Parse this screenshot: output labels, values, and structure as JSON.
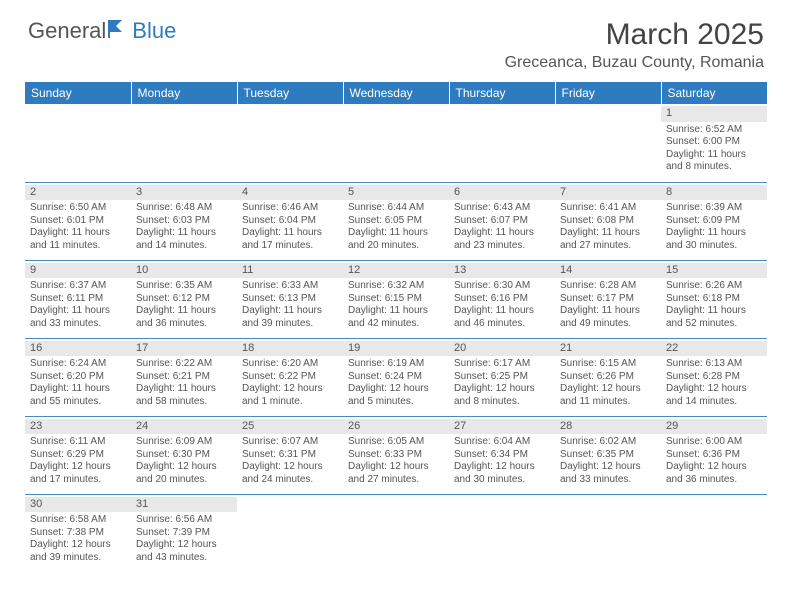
{
  "logo": {
    "text1": "General",
    "text2": "Blue"
  },
  "title": "March 2025",
  "location": "Greceanca, Buzau County, Romania",
  "columns": [
    "Sunday",
    "Monday",
    "Tuesday",
    "Wednesday",
    "Thursday",
    "Friday",
    "Saturday"
  ],
  "colors": {
    "header_bg": "#2f7bbf",
    "header_text": "#ffffff",
    "cell_border": "#4a88c0",
    "daynum_bg": "#e8e8e8",
    "text": "#555555"
  },
  "weeks": [
    [
      null,
      null,
      null,
      null,
      null,
      null,
      {
        "n": "1",
        "sr": "Sunrise: 6:52 AM",
        "ss": "Sunset: 6:00 PM",
        "d1": "Daylight: 11 hours",
        "d2": "and 8 minutes."
      }
    ],
    [
      {
        "n": "2",
        "sr": "Sunrise: 6:50 AM",
        "ss": "Sunset: 6:01 PM",
        "d1": "Daylight: 11 hours",
        "d2": "and 11 minutes."
      },
      {
        "n": "3",
        "sr": "Sunrise: 6:48 AM",
        "ss": "Sunset: 6:03 PM",
        "d1": "Daylight: 11 hours",
        "d2": "and 14 minutes."
      },
      {
        "n": "4",
        "sr": "Sunrise: 6:46 AM",
        "ss": "Sunset: 6:04 PM",
        "d1": "Daylight: 11 hours",
        "d2": "and 17 minutes."
      },
      {
        "n": "5",
        "sr": "Sunrise: 6:44 AM",
        "ss": "Sunset: 6:05 PM",
        "d1": "Daylight: 11 hours",
        "d2": "and 20 minutes."
      },
      {
        "n": "6",
        "sr": "Sunrise: 6:43 AM",
        "ss": "Sunset: 6:07 PM",
        "d1": "Daylight: 11 hours",
        "d2": "and 23 minutes."
      },
      {
        "n": "7",
        "sr": "Sunrise: 6:41 AM",
        "ss": "Sunset: 6:08 PM",
        "d1": "Daylight: 11 hours",
        "d2": "and 27 minutes."
      },
      {
        "n": "8",
        "sr": "Sunrise: 6:39 AM",
        "ss": "Sunset: 6:09 PM",
        "d1": "Daylight: 11 hours",
        "d2": "and 30 minutes."
      }
    ],
    [
      {
        "n": "9",
        "sr": "Sunrise: 6:37 AM",
        "ss": "Sunset: 6:11 PM",
        "d1": "Daylight: 11 hours",
        "d2": "and 33 minutes."
      },
      {
        "n": "10",
        "sr": "Sunrise: 6:35 AM",
        "ss": "Sunset: 6:12 PM",
        "d1": "Daylight: 11 hours",
        "d2": "and 36 minutes."
      },
      {
        "n": "11",
        "sr": "Sunrise: 6:33 AM",
        "ss": "Sunset: 6:13 PM",
        "d1": "Daylight: 11 hours",
        "d2": "and 39 minutes."
      },
      {
        "n": "12",
        "sr": "Sunrise: 6:32 AM",
        "ss": "Sunset: 6:15 PM",
        "d1": "Daylight: 11 hours",
        "d2": "and 42 minutes."
      },
      {
        "n": "13",
        "sr": "Sunrise: 6:30 AM",
        "ss": "Sunset: 6:16 PM",
        "d1": "Daylight: 11 hours",
        "d2": "and 46 minutes."
      },
      {
        "n": "14",
        "sr": "Sunrise: 6:28 AM",
        "ss": "Sunset: 6:17 PM",
        "d1": "Daylight: 11 hours",
        "d2": "and 49 minutes."
      },
      {
        "n": "15",
        "sr": "Sunrise: 6:26 AM",
        "ss": "Sunset: 6:18 PM",
        "d1": "Daylight: 11 hours",
        "d2": "and 52 minutes."
      }
    ],
    [
      {
        "n": "16",
        "sr": "Sunrise: 6:24 AM",
        "ss": "Sunset: 6:20 PM",
        "d1": "Daylight: 11 hours",
        "d2": "and 55 minutes."
      },
      {
        "n": "17",
        "sr": "Sunrise: 6:22 AM",
        "ss": "Sunset: 6:21 PM",
        "d1": "Daylight: 11 hours",
        "d2": "and 58 minutes."
      },
      {
        "n": "18",
        "sr": "Sunrise: 6:20 AM",
        "ss": "Sunset: 6:22 PM",
        "d1": "Daylight: 12 hours",
        "d2": "and 1 minute."
      },
      {
        "n": "19",
        "sr": "Sunrise: 6:19 AM",
        "ss": "Sunset: 6:24 PM",
        "d1": "Daylight: 12 hours",
        "d2": "and 5 minutes."
      },
      {
        "n": "20",
        "sr": "Sunrise: 6:17 AM",
        "ss": "Sunset: 6:25 PM",
        "d1": "Daylight: 12 hours",
        "d2": "and 8 minutes."
      },
      {
        "n": "21",
        "sr": "Sunrise: 6:15 AM",
        "ss": "Sunset: 6:26 PM",
        "d1": "Daylight: 12 hours",
        "d2": "and 11 minutes."
      },
      {
        "n": "22",
        "sr": "Sunrise: 6:13 AM",
        "ss": "Sunset: 6:28 PM",
        "d1": "Daylight: 12 hours",
        "d2": "and 14 minutes."
      }
    ],
    [
      {
        "n": "23",
        "sr": "Sunrise: 6:11 AM",
        "ss": "Sunset: 6:29 PM",
        "d1": "Daylight: 12 hours",
        "d2": "and 17 minutes."
      },
      {
        "n": "24",
        "sr": "Sunrise: 6:09 AM",
        "ss": "Sunset: 6:30 PM",
        "d1": "Daylight: 12 hours",
        "d2": "and 20 minutes."
      },
      {
        "n": "25",
        "sr": "Sunrise: 6:07 AM",
        "ss": "Sunset: 6:31 PM",
        "d1": "Daylight: 12 hours",
        "d2": "and 24 minutes."
      },
      {
        "n": "26",
        "sr": "Sunrise: 6:05 AM",
        "ss": "Sunset: 6:33 PM",
        "d1": "Daylight: 12 hours",
        "d2": "and 27 minutes."
      },
      {
        "n": "27",
        "sr": "Sunrise: 6:04 AM",
        "ss": "Sunset: 6:34 PM",
        "d1": "Daylight: 12 hours",
        "d2": "and 30 minutes."
      },
      {
        "n": "28",
        "sr": "Sunrise: 6:02 AM",
        "ss": "Sunset: 6:35 PM",
        "d1": "Daylight: 12 hours",
        "d2": "and 33 minutes."
      },
      {
        "n": "29",
        "sr": "Sunrise: 6:00 AM",
        "ss": "Sunset: 6:36 PM",
        "d1": "Daylight: 12 hours",
        "d2": "and 36 minutes."
      }
    ],
    [
      {
        "n": "30",
        "sr": "Sunrise: 6:58 AM",
        "ss": "Sunset: 7:38 PM",
        "d1": "Daylight: 12 hours",
        "d2": "and 39 minutes."
      },
      {
        "n": "31",
        "sr": "Sunrise: 6:56 AM",
        "ss": "Sunset: 7:39 PM",
        "d1": "Daylight: 12 hours",
        "d2": "and 43 minutes."
      },
      null,
      null,
      null,
      null,
      null
    ]
  ]
}
